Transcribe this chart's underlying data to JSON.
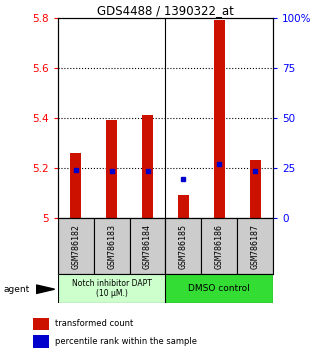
{
  "title": "GDS4488 / 1390322_at",
  "samples": [
    "GSM786182",
    "GSM786183",
    "GSM786184",
    "GSM786185",
    "GSM786186",
    "GSM786187"
  ],
  "red_values": [
    5.26,
    5.39,
    5.41,
    5.09,
    5.79,
    5.23
  ],
  "blue_values": [
    5.19,
    5.185,
    5.185,
    5.155,
    5.215,
    5.185
  ],
  "ylim_left": [
    5.0,
    5.8
  ],
  "yticks_left": [
    5.0,
    5.2,
    5.4,
    5.6,
    5.8
  ],
  "ytick_labels_left": [
    "5",
    "5.2",
    "5.4",
    "5.6",
    "5.8"
  ],
  "yticks_right": [
    0,
    25,
    50,
    75,
    100
  ],
  "ytick_labels_right": [
    "0",
    "25",
    "50",
    "75",
    "100%"
  ],
  "ylim_right": [
    0,
    100
  ],
  "group1_label": "Notch inhibitor DAPT\n(10 μM.)",
  "group2_label": "DMSO control",
  "group1_count": 3,
  "group2_count": 3,
  "legend_red": "transformed count",
  "legend_blue": "percentile rank within the sample",
  "bar_color": "#cc1100",
  "dot_color": "#0000cc",
  "group1_bg": "#ccffcc",
  "group2_bg": "#33dd33",
  "sample_bg": "#cccccc",
  "agent_label": "agent",
  "bar_width": 0.3
}
